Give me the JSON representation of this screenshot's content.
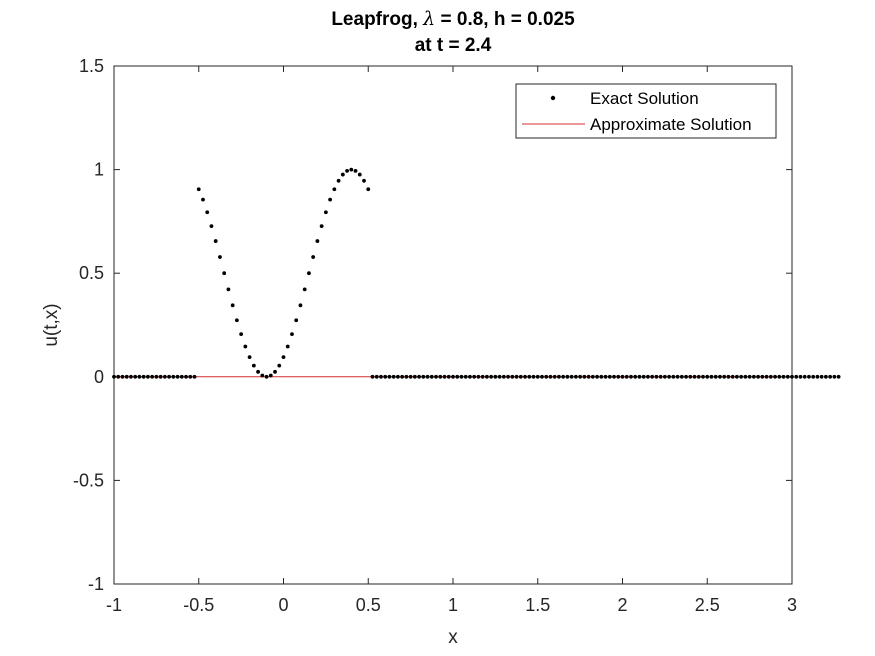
{
  "chart_data": {
    "type": "line",
    "title_line1_prefix": "Leapfrog, ",
    "title_lambda": "λ",
    "title_line1_suffix": " = 0.8, h = 0.025",
    "title_line2": "at t = 2.4",
    "xlabel": "x",
    "ylabel": "u(t,x)",
    "xlim": [
      -1,
      3
    ],
    "ylim": [
      -1,
      1.5
    ],
    "xticks": [
      -1,
      -0.5,
      0,
      0.5,
      1,
      1.5,
      2,
      2.5,
      3
    ],
    "xtick_labels": [
      "-1",
      "-0.5",
      "0",
      "0.5",
      "1",
      "1.5",
      "2",
      "2.5",
      "3"
    ],
    "yticks": [
      -1,
      -0.5,
      0,
      0.5,
      1,
      1.5
    ],
    "ytick_labels": [
      "-1",
      "-0.5",
      "0",
      "0.5",
      "1",
      "1.5"
    ],
    "grid": false,
    "legend_position": "top-right",
    "legend": [
      "Exact Solution",
      "Approximate Solution"
    ],
    "series": [
      {
        "name": "Exact Solution",
        "style": "dots",
        "color": "#000000",
        "x_start": -1,
        "x_step": 0.025,
        "y": [
          0,
          0,
          0,
          0,
          0,
          0,
          0,
          0,
          0,
          0,
          0,
          0,
          0,
          0,
          0,
          0,
          0,
          0,
          0,
          0,
          0.905,
          0.855,
          0.794,
          0.727,
          0.655,
          0.578,
          0.5,
          0.422,
          0.345,
          0.273,
          0.206,
          0.146,
          0.095,
          0.054,
          0.024,
          0.006,
          0,
          0.006,
          0.024,
          0.054,
          0.095,
          0.146,
          0.206,
          0.273,
          0.345,
          0.422,
          0.5,
          0.578,
          0.655,
          0.727,
          0.794,
          0.855,
          0.905,
          0.946,
          0.976,
          0.994,
          1.0,
          0.994,
          0.976,
          0.946,
          0.905,
          0,
          0,
          0,
          0,
          0,
          0,
          0,
          0,
          0,
          0,
          0,
          0,
          0,
          0,
          0,
          0,
          0,
          0,
          0,
          0,
          0,
          0,
          0,
          0,
          0,
          0,
          0,
          0,
          0,
          0,
          0,
          0,
          0,
          0,
          0,
          0,
          0,
          0,
          0,
          0,
          0,
          0,
          0,
          0,
          0,
          0,
          0,
          0,
          0,
          0,
          0,
          0,
          0,
          0,
          0,
          0,
          0,
          0,
          0,
          0,
          0,
          0,
          0,
          0,
          0,
          0,
          0,
          0,
          0,
          0,
          0,
          0,
          0,
          0,
          0,
          0,
          0,
          0,
          0,
          0,
          0,
          0,
          0,
          0,
          0,
          0,
          0,
          0,
          0,
          0,
          0,
          0,
          0,
          0,
          0,
          0,
          0,
          0,
          0,
          0,
          0,
          0,
          0,
          0,
          0,
          0,
          0,
          0,
          0,
          0,
          0
        ]
      },
      {
        "name": "Approximate Solution",
        "style": "line",
        "color": "#d32f2f",
        "x": [
          -1,
          3
        ],
        "y": [
          0,
          0
        ]
      }
    ]
  }
}
